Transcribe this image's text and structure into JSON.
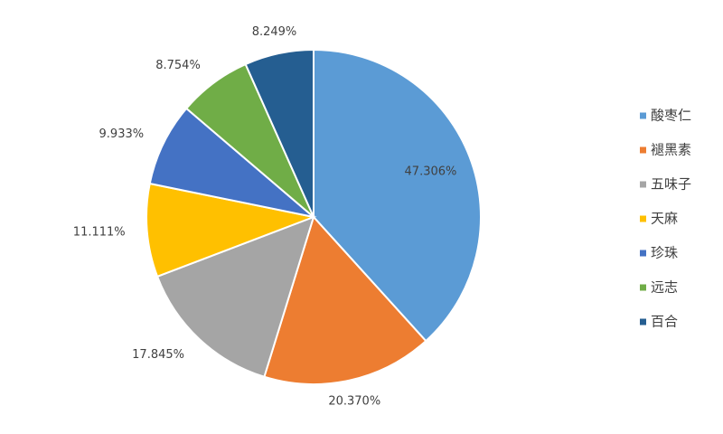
{
  "chart_data": {
    "type": "pie",
    "categories": [
      "酸枣仁",
      "褪黑素",
      "五味子",
      "天麻",
      "珍珠",
      "远志",
      "百合"
    ],
    "values": [
      47.306,
      20.37,
      17.845,
      11.111,
      9.933,
      8.754,
      8.249
    ],
    "value_labels": [
      "47.306%",
      "20.370%",
      "17.845%",
      "11.111%",
      "9.933%",
      "8.754%",
      "8.249%"
    ],
    "colors": [
      "#5b9bd5",
      "#ed7d31",
      "#a5a5a5",
      "#ffc000",
      "#4472c4",
      "#70ad47",
      "#255e91"
    ],
    "legend": "right"
  }
}
